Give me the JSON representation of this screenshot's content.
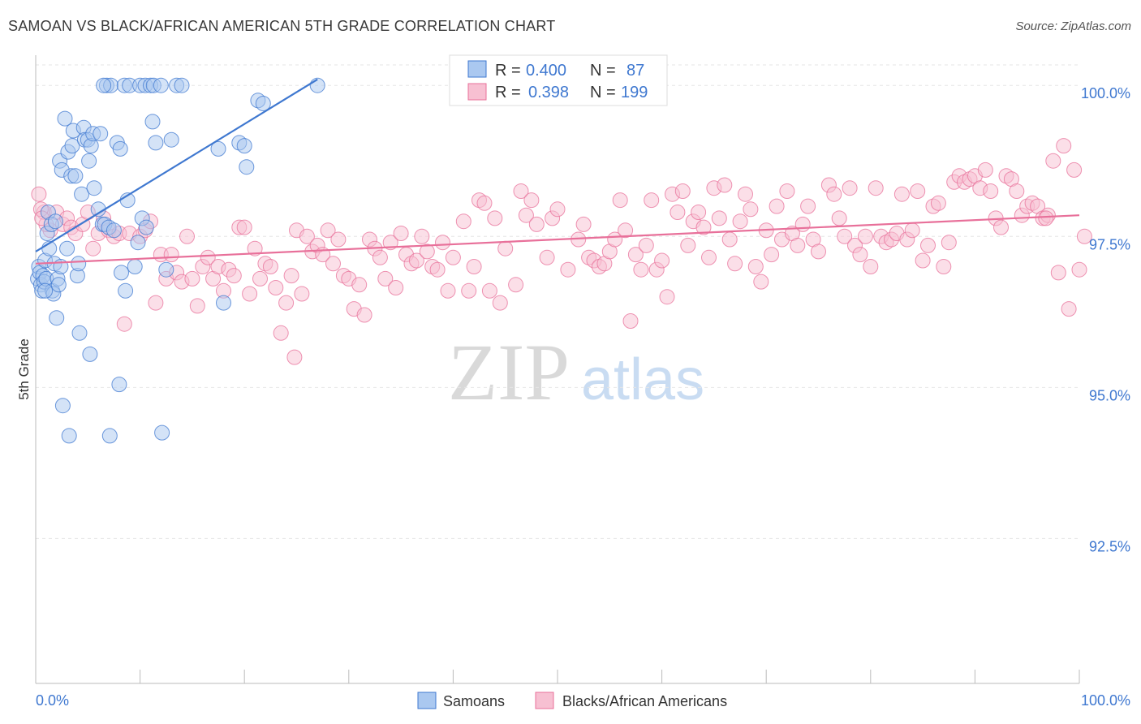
{
  "header": {
    "title": "SAMOAN VS BLACK/AFRICAN AMERICAN 5TH GRADE CORRELATION CHART",
    "source": "Source: ZipAtlas.com"
  },
  "watermark": {
    "part1": "ZIP",
    "part2": "atlas"
  },
  "stats": {
    "r_label": "R =",
    "n_label": "N =",
    "rows": [
      {
        "series": "Samoans",
        "r": "0.400",
        "n": "87",
        "color": "#3f78d0",
        "fill": "#aac8f0"
      },
      {
        "series": "Blacks/African Americans",
        "r": "0.398",
        "n": "199",
        "color": "#e8709a",
        "fill": "#f7c0d2"
      }
    ]
  },
  "legend": [
    {
      "label": "Samoans",
      "color": "#3f78d0",
      "fill": "#aac8f0"
    },
    {
      "label": "Blacks/African Americans",
      "color": "#e8709a",
      "fill": "#f7c0d2"
    }
  ],
  "chart_data": {
    "type": "scatter",
    "title": "SAMOAN VS BLACK/AFRICAN AMERICAN 5TH GRADE CORRELATION CHART",
    "xlabel": "",
    "ylabel": "5th Grade",
    "xlim": [
      0,
      100
    ],
    "ylim": [
      90.1,
      100.5
    ],
    "x_tick_labels": [
      "0.0%",
      "100.0%"
    ],
    "y_ticks": [
      92.5,
      95.0,
      97.5,
      100.0
    ],
    "y_tick_labels": [
      "92.5%",
      "95.0%",
      "97.5%",
      "100.0%"
    ],
    "grid": true,
    "series": [
      {
        "name": "Samoans",
        "color": "#3f78d0",
        "fill": "#aac8f0",
        "trend": {
          "x1": 0,
          "y1": 97.25,
          "x2": 27,
          "y2": 100.1
        },
        "points": [
          [
            0.2,
            96.8
          ],
          [
            0.3,
            97.0
          ],
          [
            0.4,
            96.9
          ],
          [
            0.5,
            96.7
          ],
          [
            0.6,
            96.6
          ],
          [
            0.7,
            96.85
          ],
          [
            0.8,
            96.75
          ],
          [
            0.9,
            97.1
          ],
          [
            1.0,
            96.8
          ],
          [
            1.1,
            97.55
          ],
          [
            1.2,
            97.9
          ],
          [
            1.3,
            97.3
          ],
          [
            1.5,
            97.7
          ],
          [
            1.6,
            96.6
          ],
          [
            1.7,
            96.55
          ],
          [
            1.8,
            97.05
          ],
          [
            1.9,
            97.75
          ],
          [
            2.0,
            96.15
          ],
          [
            2.1,
            96.8
          ],
          [
            2.2,
            96.7
          ],
          [
            2.3,
            98.75
          ],
          [
            2.5,
            98.6
          ],
          [
            2.8,
            99.45
          ],
          [
            3.0,
            97.3
          ],
          [
            3.1,
            98.9
          ],
          [
            3.2,
            94.2
          ],
          [
            3.4,
            98.5
          ],
          [
            3.5,
            99.0
          ],
          [
            3.6,
            99.25
          ],
          [
            3.8,
            98.5
          ],
          [
            4.0,
            96.85
          ],
          [
            4.1,
            97.05
          ],
          [
            4.2,
            95.9
          ],
          [
            4.4,
            98.2
          ],
          [
            4.6,
            99.3
          ],
          [
            4.7,
            99.1
          ],
          [
            5.0,
            99.1
          ],
          [
            5.1,
            98.75
          ],
          [
            5.2,
            95.55
          ],
          [
            5.3,
            99.0
          ],
          [
            5.5,
            99.2
          ],
          [
            5.6,
            98.3
          ],
          [
            6.0,
            97.95
          ],
          [
            6.2,
            99.2
          ],
          [
            6.4,
            97.7
          ],
          [
            6.6,
            97.7
          ],
          [
            6.8,
            100.0
          ],
          [
            7.0,
            97.65
          ],
          [
            7.2,
            100.0
          ],
          [
            7.5,
            97.6
          ],
          [
            7.8,
            99.05
          ],
          [
            8.0,
            95.05
          ],
          [
            8.1,
            98.95
          ],
          [
            8.2,
            96.9
          ],
          [
            8.5,
            100.0
          ],
          [
            8.6,
            96.6
          ],
          [
            8.8,
            98.1
          ],
          [
            9.0,
            100.0
          ],
          [
            9.5,
            97.0
          ],
          [
            9.8,
            97.4
          ],
          [
            10.0,
            100.0
          ],
          [
            10.2,
            97.8
          ],
          [
            10.5,
            100.0
          ],
          [
            10.6,
            97.65
          ],
          [
            11.0,
            100.0
          ],
          [
            11.2,
            99.4
          ],
          [
            11.3,
            100.0
          ],
          [
            11.5,
            99.05
          ],
          [
            12.0,
            100.0
          ],
          [
            12.5,
            96.95
          ],
          [
            13.0,
            99.1
          ],
          [
            13.5,
            100.0
          ],
          [
            14.0,
            100.0
          ],
          [
            17.5,
            98.95
          ],
          [
            18.0,
            96.4
          ],
          [
            19.5,
            99.05
          ],
          [
            20.0,
            99.0
          ],
          [
            20.2,
            98.65
          ],
          [
            21.3,
            99.75
          ],
          [
            21.8,
            99.7
          ],
          [
            27.0,
            100.0
          ],
          [
            0.9,
            96.6
          ],
          [
            2.6,
            94.7
          ],
          [
            7.1,
            94.2
          ],
          [
            12.1,
            94.25
          ],
          [
            6.5,
            100.0
          ],
          [
            2.4,
            97.0
          ]
        ]
      },
      {
        "name": "Blacks/African Americans",
        "color": "#e8709a",
        "fill": "#f7c0d2",
        "trend": {
          "x1": 0,
          "y1": 97.05,
          "x2": 100,
          "y2": 97.85
        },
        "points": [
          [
            0.3,
            98.2
          ],
          [
            0.8,
            97.9
          ],
          [
            1.4,
            97.6
          ],
          [
            2.0,
            97.9
          ],
          [
            2.6,
            97.7
          ],
          [
            3.0,
            97.8
          ],
          [
            3.4,
            97.65
          ],
          [
            3.8,
            97.55
          ],
          [
            4.5,
            97.7
          ],
          [
            5.0,
            97.9
          ],
          [
            5.5,
            97.3
          ],
          [
            6.0,
            97.55
          ],
          [
            6.5,
            97.8
          ],
          [
            7.0,
            97.6
          ],
          [
            7.5,
            97.5
          ],
          [
            8.0,
            97.55
          ],
          [
            8.5,
            96.05
          ],
          [
            9.0,
            97.55
          ],
          [
            10.0,
            97.5
          ],
          [
            10.5,
            97.6
          ],
          [
            11.0,
            97.75
          ],
          [
            11.5,
            96.4
          ],
          [
            12.0,
            97.2
          ],
          [
            12.5,
            96.8
          ],
          [
            13.0,
            97.2
          ],
          [
            13.5,
            96.9
          ],
          [
            14.0,
            96.75
          ],
          [
            14.5,
            97.5
          ],
          [
            15.0,
            96.8
          ],
          [
            15.5,
            96.35
          ],
          [
            16.0,
            97.0
          ],
          [
            16.5,
            97.15
          ],
          [
            17.0,
            96.8
          ],
          [
            17.5,
            97.0
          ],
          [
            18.0,
            96.6
          ],
          [
            18.5,
            96.95
          ],
          [
            19.0,
            96.85
          ],
          [
            19.5,
            97.65
          ],
          [
            20.0,
            97.65
          ],
          [
            20.5,
            96.55
          ],
          [
            21.0,
            97.3
          ],
          [
            21.5,
            96.8
          ],
          [
            22.0,
            97.05
          ],
          [
            22.5,
            97.0
          ],
          [
            23.0,
            96.65
          ],
          [
            23.5,
            95.9
          ],
          [
            24.0,
            96.4
          ],
          [
            24.5,
            96.85
          ],
          [
            25.0,
            97.6
          ],
          [
            25.5,
            96.55
          ],
          [
            26.0,
            97.5
          ],
          [
            26.5,
            97.25
          ],
          [
            27.0,
            97.35
          ],
          [
            27.5,
            97.2
          ],
          [
            28.0,
            97.6
          ],
          [
            28.5,
            97.05
          ],
          [
            29.0,
            97.45
          ],
          [
            29.5,
            96.85
          ],
          [
            30.0,
            96.8
          ],
          [
            30.5,
            96.3
          ],
          [
            31.0,
            96.7
          ],
          [
            31.5,
            96.2
          ],
          [
            32.0,
            97.45
          ],
          [
            32.5,
            97.3
          ],
          [
            33.0,
            97.15
          ],
          [
            33.5,
            96.8
          ],
          [
            34.0,
            97.4
          ],
          [
            34.5,
            96.65
          ],
          [
            35.0,
            97.55
          ],
          [
            35.5,
            97.2
          ],
          [
            36.0,
            97.05
          ],
          [
            36.5,
            97.1
          ],
          [
            37.0,
            97.5
          ],
          [
            37.5,
            97.25
          ],
          [
            38.0,
            97.0
          ],
          [
            38.5,
            96.95
          ],
          [
            39.0,
            97.4
          ],
          [
            39.5,
            96.6
          ],
          [
            40.0,
            97.15
          ],
          [
            41.0,
            97.75
          ],
          [
            41.5,
            96.6
          ],
          [
            42.0,
            97.0
          ],
          [
            42.5,
            98.1
          ],
          [
            43.0,
            98.05
          ],
          [
            43.5,
            96.6
          ],
          [
            44.0,
            97.8
          ],
          [
            44.5,
            96.4
          ],
          [
            45.0,
            97.3
          ],
          [
            46.0,
            96.7
          ],
          [
            46.5,
            98.25
          ],
          [
            47.0,
            97.85
          ],
          [
            47.5,
            98.1
          ],
          [
            48.0,
            97.7
          ],
          [
            49.0,
            97.15
          ],
          [
            49.5,
            97.8
          ],
          [
            50.0,
            97.95
          ],
          [
            51.0,
            96.95
          ],
          [
            52.0,
            97.45
          ],
          [
            52.5,
            97.7
          ],
          [
            53.0,
            97.15
          ],
          [
            53.5,
            97.1
          ],
          [
            54.0,
            97.0
          ],
          [
            54.5,
            97.05
          ],
          [
            55.0,
            97.25
          ],
          [
            55.5,
            97.45
          ],
          [
            56.0,
            98.1
          ],
          [
            56.5,
            97.6
          ],
          [
            57.0,
            96.1
          ],
          [
            57.5,
            97.2
          ],
          [
            58.0,
            96.95
          ],
          [
            58.5,
            97.35
          ],
          [
            59.0,
            98.1
          ],
          [
            59.5,
            96.95
          ],
          [
            60.0,
            97.1
          ],
          [
            60.5,
            96.5
          ],
          [
            61.0,
            98.2
          ],
          [
            61.5,
            97.9
          ],
          [
            62.0,
            98.25
          ],
          [
            62.5,
            97.35
          ],
          [
            63.0,
            97.75
          ],
          [
            63.5,
            97.9
          ],
          [
            64.0,
            97.65
          ],
          [
            64.5,
            97.15
          ],
          [
            65.0,
            98.3
          ],
          [
            65.5,
            97.8
          ],
          [
            66.0,
            98.35
          ],
          [
            66.5,
            97.45
          ],
          [
            67.0,
            97.05
          ],
          [
            67.5,
            97.75
          ],
          [
            68.0,
            98.2
          ],
          [
            68.5,
            97.95
          ],
          [
            69.0,
            97.0
          ],
          [
            69.5,
            96.75
          ],
          [
            70.0,
            97.6
          ],
          [
            70.5,
            97.2
          ],
          [
            71.0,
            98.0
          ],
          [
            71.5,
            97.45
          ],
          [
            72.0,
            98.25
          ],
          [
            72.5,
            97.55
          ],
          [
            73.0,
            97.35
          ],
          [
            73.5,
            97.7
          ],
          [
            74.0,
            98.0
          ],
          [
            74.5,
            97.45
          ],
          [
            75.0,
            97.25
          ],
          [
            76.0,
            98.35
          ],
          [
            76.5,
            98.2
          ],
          [
            77.0,
            97.8
          ],
          [
            77.5,
            97.5
          ],
          [
            78.0,
            98.3
          ],
          [
            78.5,
            97.35
          ],
          [
            79.0,
            97.2
          ],
          [
            79.5,
            97.5
          ],
          [
            80.0,
            97.0
          ],
          [
            80.5,
            98.3
          ],
          [
            81.0,
            97.5
          ],
          [
            81.5,
            97.4
          ],
          [
            82.0,
            97.45
          ],
          [
            82.5,
            97.55
          ],
          [
            83.0,
            98.2
          ],
          [
            83.5,
            97.45
          ],
          [
            84.0,
            97.6
          ],
          [
            84.5,
            98.25
          ],
          [
            85.0,
            97.1
          ],
          [
            85.5,
            97.35
          ],
          [
            86.0,
            98.0
          ],
          [
            86.5,
            98.05
          ],
          [
            87.0,
            97.0
          ],
          [
            87.5,
            97.4
          ],
          [
            88.0,
            98.4
          ],
          [
            88.5,
            98.5
          ],
          [
            89.0,
            98.4
          ],
          [
            89.5,
            98.45
          ],
          [
            90.0,
            98.5
          ],
          [
            90.5,
            98.3
          ],
          [
            91.0,
            98.6
          ],
          [
            91.5,
            98.25
          ],
          [
            92.0,
            97.8
          ],
          [
            92.5,
            97.65
          ],
          [
            93.0,
            98.5
          ],
          [
            93.5,
            98.45
          ],
          [
            94.0,
            98.25
          ],
          [
            94.5,
            97.85
          ],
          [
            95.0,
            98.0
          ],
          [
            95.5,
            98.05
          ],
          [
            96.0,
            98.0
          ],
          [
            96.5,
            97.8
          ],
          [
            97.0,
            97.85
          ],
          [
            97.5,
            98.75
          ],
          [
            98.0,
            96.9
          ],
          [
            98.5,
            99.0
          ],
          [
            99.0,
            96.3
          ],
          [
            99.5,
            98.6
          ],
          [
            100.0,
            96.95
          ],
          [
            100.5,
            97.5
          ],
          [
            96.8,
            97.8
          ],
          [
            0.5,
            97.95
          ],
          [
            1.0,
            97.7
          ],
          [
            24.8,
            95.5
          ],
          [
            0.6,
            97.8
          ]
        ]
      }
    ]
  }
}
